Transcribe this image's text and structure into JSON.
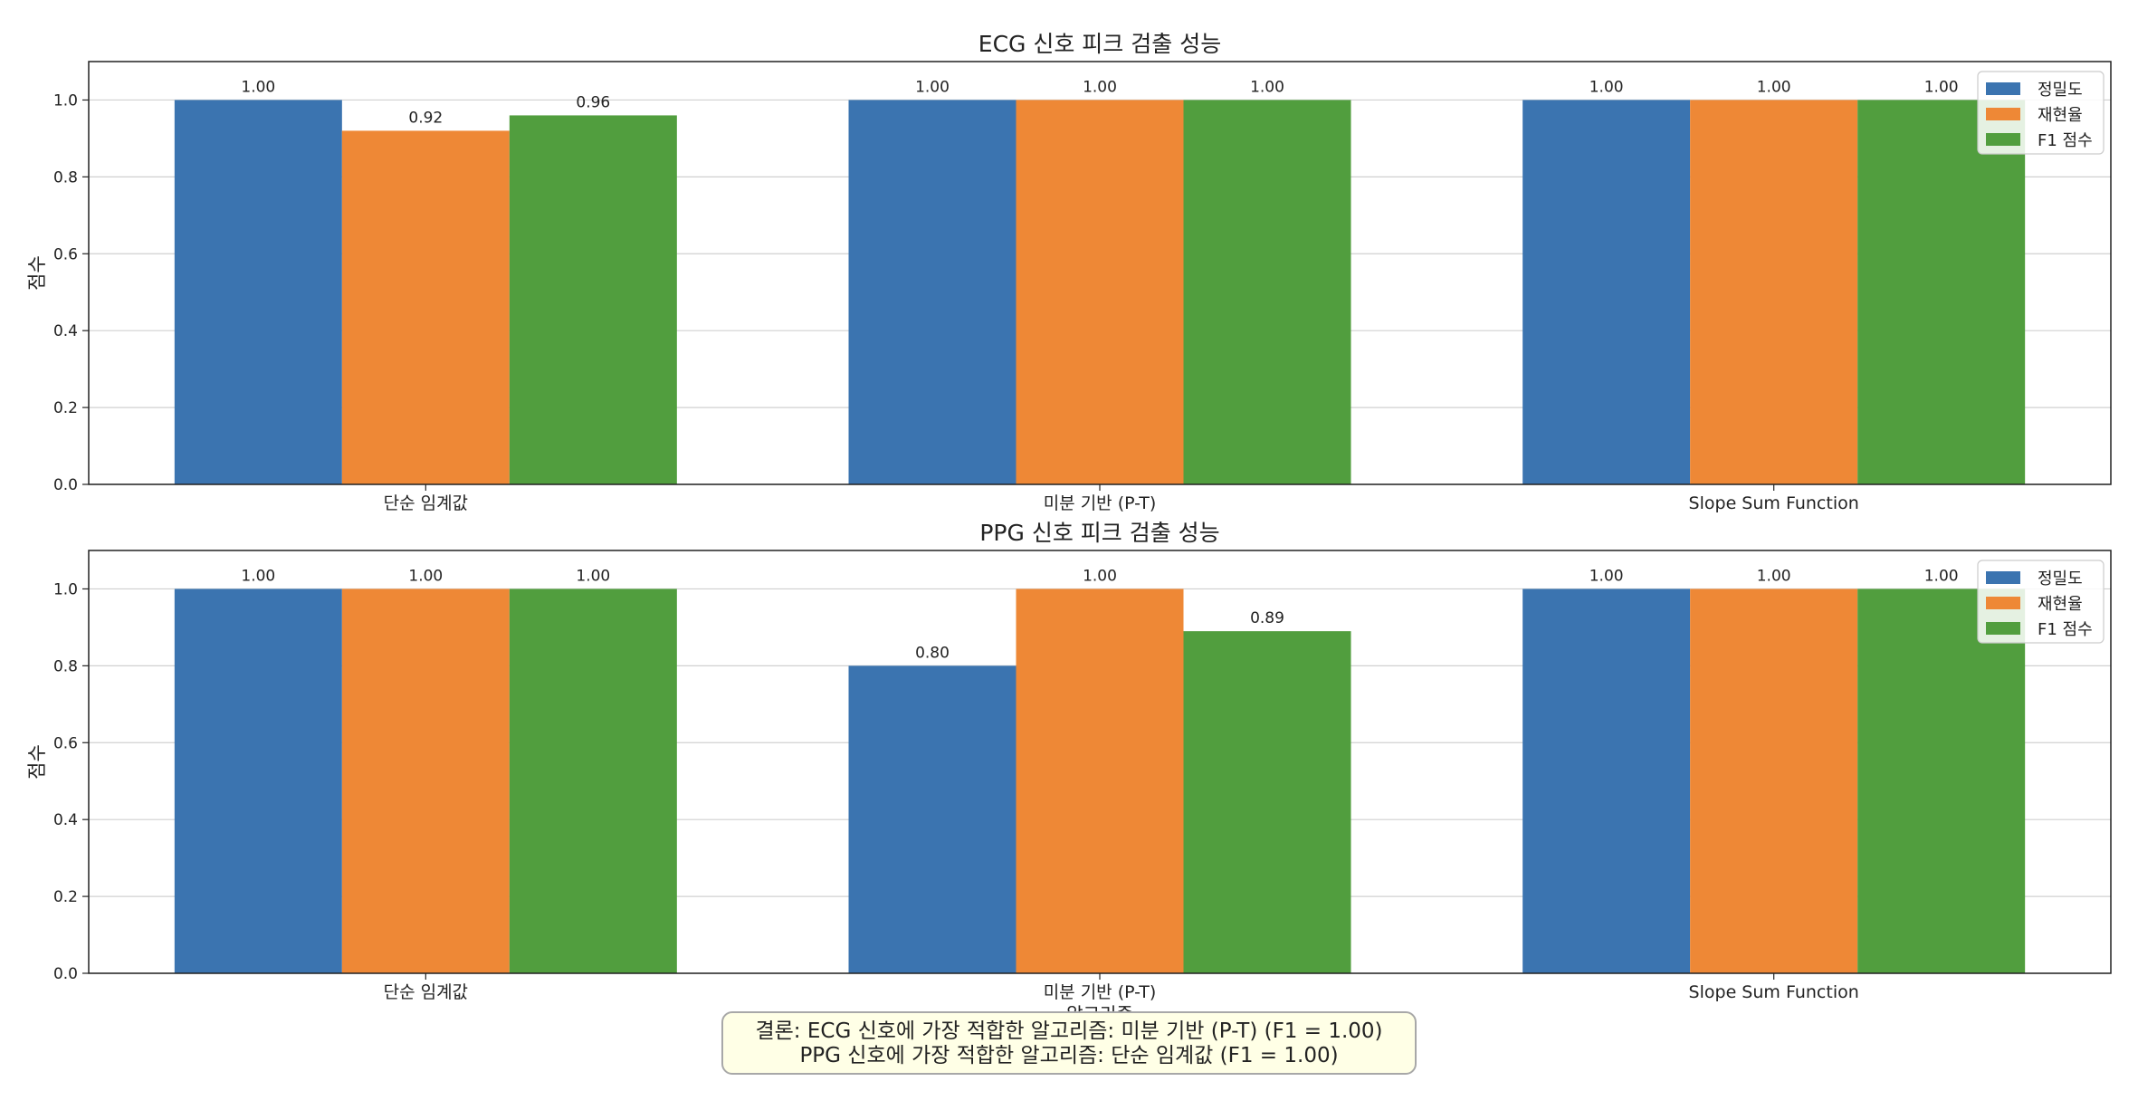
{
  "colors": {
    "precision": "#3b74b0",
    "recall": "#ee8836",
    "f1": "#519e3e"
  },
  "conclusion": {
    "line1": "결론: ECG 신호에 가장 적합한 알고리즘: 미분 기반 (P-T) (F1 = 1.00)",
    "line2": "PPG 신호에 가장 적합한 알고리즘: 단순 임계값 (F1 = 1.00)"
  },
  "chart_data": [
    {
      "type": "bar",
      "title": "ECG 신호 피크 검출 성능",
      "xlabel": "",
      "ylabel": "점수",
      "ylim": [
        0,
        1.1
      ],
      "yticks": [
        "0.0",
        "0.2",
        "0.4",
        "0.6",
        "0.8",
        "1.0"
      ],
      "grid": "y",
      "legend_loc": "upper right",
      "categories": [
        "단순 임계값",
        "미분 기반 (P-T)",
        "Slope Sum Function"
      ],
      "series": [
        {
          "name": "정밀도",
          "values": [
            1.0,
            1.0,
            1.0
          ],
          "labels": [
            "1.00",
            "1.00",
            "1.00"
          ]
        },
        {
          "name": "재현율",
          "values": [
            0.92,
            1.0,
            1.0
          ],
          "labels": [
            "0.92",
            "1.00",
            "1.00"
          ]
        },
        {
          "name": "F1 점수",
          "values": [
            0.96,
            1.0,
            1.0
          ],
          "labels": [
            "0.96",
            "1.00",
            "1.00"
          ]
        }
      ]
    },
    {
      "type": "bar",
      "title": "PPG 신호 피크 검출 성능",
      "xlabel": "알고리즘",
      "ylabel": "점수",
      "ylim": [
        0,
        1.1
      ],
      "yticks": [
        "0.0",
        "0.2",
        "0.4",
        "0.6",
        "0.8",
        "1.0"
      ],
      "grid": "y",
      "legend_loc": "upper right",
      "categories": [
        "단순 임계값",
        "미분 기반 (P-T)",
        "Slope Sum Function"
      ],
      "series": [
        {
          "name": "정밀도",
          "values": [
            1.0,
            0.8,
            1.0
          ],
          "labels": [
            "1.00",
            "0.80",
            "1.00"
          ]
        },
        {
          "name": "재현율",
          "values": [
            1.0,
            1.0,
            1.0
          ],
          "labels": [
            "1.00",
            "1.00",
            "1.00"
          ]
        },
        {
          "name": "F1 점수",
          "values": [
            1.0,
            0.89,
            1.0
          ],
          "labels": [
            "1.00",
            "0.89",
            "1.00"
          ]
        }
      ]
    }
  ]
}
